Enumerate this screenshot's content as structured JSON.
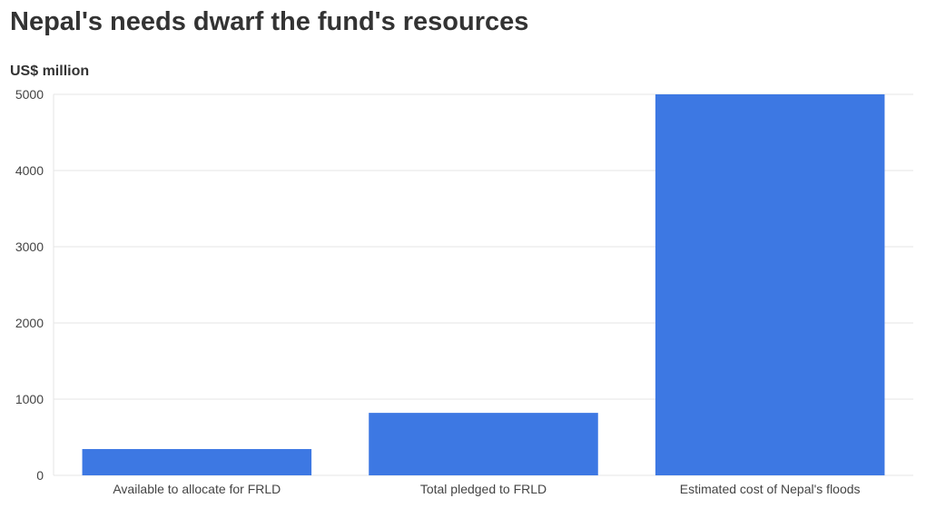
{
  "chart_data": {
    "type": "bar",
    "title": "Nepal's needs dwarf the fund's resources",
    "ylabel": "US$ million",
    "xlabel": "",
    "categories": [
      "Available to allocate for FRLD",
      "Total pledged to FRLD",
      "Estimated cost of Nepal's floods"
    ],
    "values": [
      345,
      820,
      5000
    ],
    "ylim": [
      0,
      5000
    ],
    "yticks": [
      0,
      1000,
      2000,
      3000,
      4000,
      5000
    ],
    "grid": true,
    "bar_color": "#3d78e3"
  }
}
